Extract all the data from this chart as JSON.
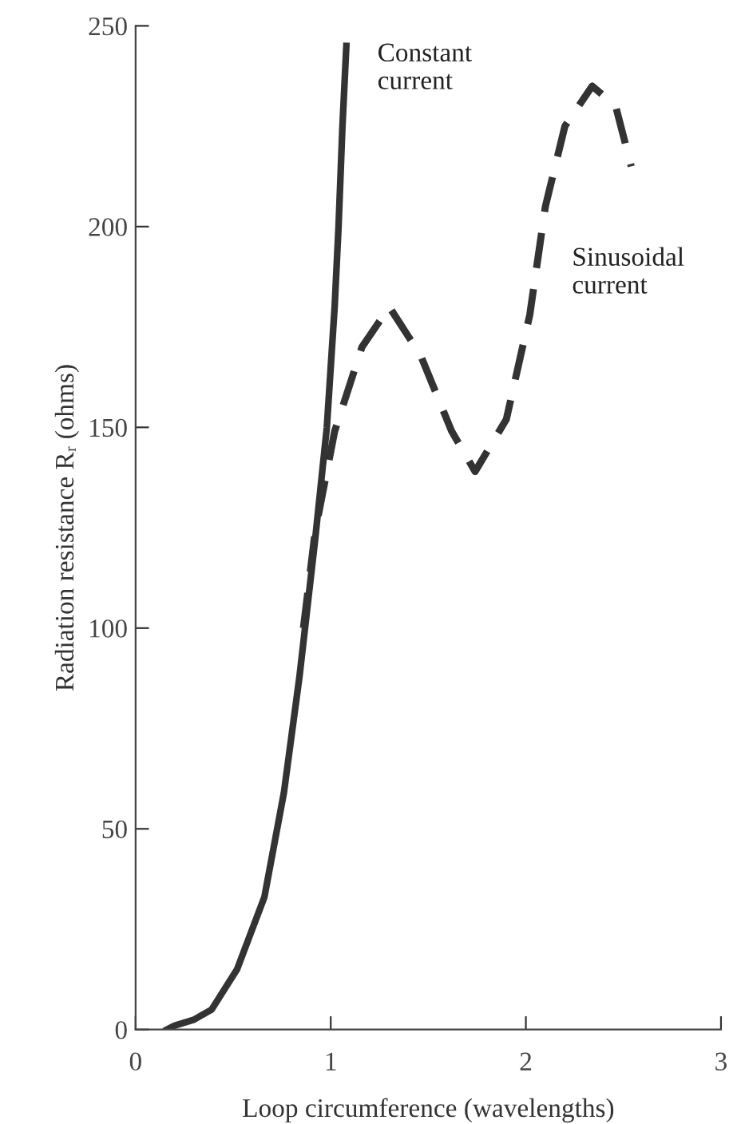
{
  "chart_data": {
    "type": "line",
    "xlabel": "Loop circumference (wavelengths)",
    "ylabel": "Radiation resistance Rᵣ (ohms)",
    "xlim": [
      0,
      3
    ],
    "xticks": [
      0,
      1,
      2,
      3
    ],
    "ylim": [
      0,
      250
    ],
    "yticks": [
      0,
      50,
      100,
      150,
      200,
      250
    ],
    "grid": false,
    "legend": false,
    "series": [
      {
        "name": "Constant\ncurrent",
        "color": "#333333",
        "line_style": "solid",
        "x": [
          0.16,
          0.2,
          0.3,
          0.39,
          0.52,
          0.66,
          0.76,
          0.84,
          0.92,
          0.98,
          1.02,
          1.04,
          1.06,
          1.08
        ],
        "values": [
          0,
          1,
          2.5,
          5,
          15,
          33,
          59,
          88,
          122,
          150,
          180,
          200,
          225,
          245
        ]
      },
      {
        "name": "Sinusoidal\ncurrent",
        "color": "#333333",
        "line_style": "dashed",
        "x": [
          0.86,
          0.92,
          1.02,
          1.16,
          1.3,
          1.46,
          1.62,
          1.74,
          1.9,
          2.02,
          2.1,
          2.2,
          2.34,
          2.46,
          2.54
        ],
        "values": [
          100,
          124,
          149,
          170,
          180,
          168,
          149,
          139,
          152,
          178,
          205,
          225,
          235,
          230,
          215
        ]
      }
    ]
  }
}
